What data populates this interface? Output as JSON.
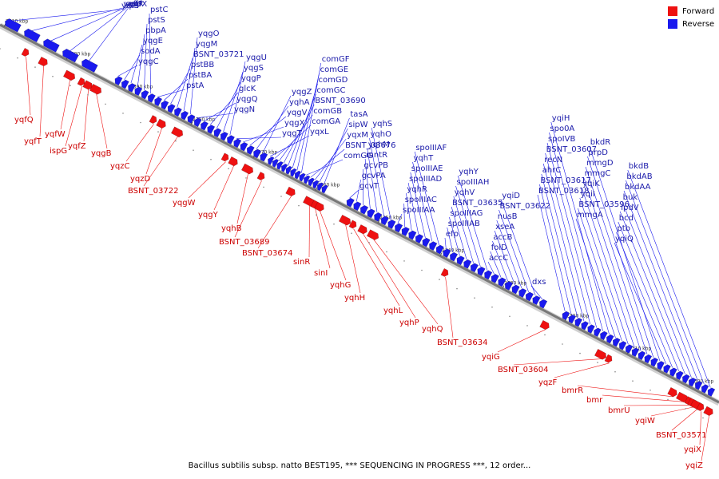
{
  "colors": {
    "forward": "#ee1111",
    "reverse": "#1a1aee",
    "backbone": "#777777",
    "forward_label": "#cc0000",
    "reverse_label": "#1a1aaa"
  },
  "legend": [
    {
      "label": "Forward",
      "strand": "forward"
    },
    {
      "label": "Reverse",
      "strand": "reverse"
    }
  ],
  "caption": "Bacillus subtilis subsp. natto BEST195, *** SEQUENCING IN PROGRESS ***, 12 order...",
  "ticks": [
    "2410 kbp",
    "2400 kbp",
    "2390 kbp",
    "2380 kbp",
    "2370 kbp",
    "2360 kbp",
    "2350 kbp",
    "2340 kbp",
    "2330 kbp",
    "2320 kbp",
    "2310 kbp",
    "2300 kbp"
  ],
  "forward_genes": [
    "yqfQ",
    "yqfT",
    "yqfW",
    "ispG",
    "yqfZ",
    "yqgB",
    "yqzC",
    "yqzD",
    "BSNT_03722",
    "yqgW",
    "yqgY",
    "yqhB",
    "BSNT_03689",
    "BSNT_03674",
    "sinR",
    "sinI",
    "yqhG",
    "yqhH",
    "yqhL",
    "yqhP",
    "yqhQ",
    "BSNT_03634",
    "yqiG",
    "BSNT_03604",
    "yqzF",
    "bmrR",
    "bmr",
    "bmrU",
    "yqiW",
    "BSNT_03571",
    "yqiX",
    "yqiZ"
  ],
  "reverse_groups": [
    [
      "yqfS",
      "yqfU",
      "yqfR",
      "zur",
      "yqfX"
    ],
    [
      "yqgC",
      "sodA",
      "yqgE",
      "pbpA",
      "pstS",
      "pstC",
      "pstA",
      "pstBA",
      "pstBB",
      "BSNT_03721",
      "yqgM",
      "yqgO",
      "yqgN",
      "yqgQ",
      "glcK",
      "yqgP",
      "yqgS",
      "yqgU",
      "yqgT",
      "yqgX",
      "yqgV",
      "yqhA",
      "yqgZ"
    ],
    [
      "yqxL",
      "comGA",
      "comGB",
      "BSNT_03690",
      "comGC",
      "comGD",
      "comGE",
      "comGF",
      "comGG",
      "BSNT_03676",
      "yqxM",
      "sipW",
      "tasA"
    ],
    [
      "gcvT",
      "gcvPA",
      "gcvPB",
      "mntR",
      "yqhM",
      "yqhO",
      "yqhS",
      "spoIIIAA",
      "spoIIIAC",
      "yqhR",
      "spoIIIAD",
      "spoIIIAE",
      "yqhT",
      "spoIIIAF",
      "efp",
      "spoIIIAB",
      "spoIIIAG",
      "BSNT_03635",
      "yqhV",
      "spoIIIAH",
      "yqhY",
      "accC",
      "folD",
      "accB",
      "xseA",
      "nusB",
      "BSNT_03622",
      "yqiD",
      "dxs"
    ],
    [
      "BSNT_03618",
      "BSNT_03617",
      "ahrC",
      "recN",
      "BSNT_03607",
      "spoIVB",
      "spo0A",
      "yqiH",
      "mmgA",
      "BSNT_03596",
      "yqiI",
      "yqiK",
      "mmgC",
      "mmgD",
      "prpD",
      "bkdR",
      "yqiQ",
      "ptb",
      "bcd",
      "lpdV",
      "buk",
      "bkdAA",
      "bkdAB",
      "bkdB"
    ]
  ]
}
